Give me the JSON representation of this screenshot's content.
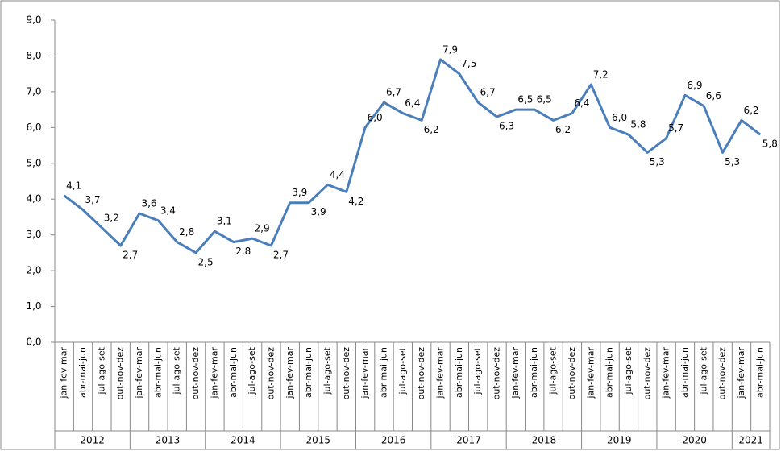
{
  "chart_data": {
    "type": "line",
    "groups": [
      {
        "name": "2012",
        "categories": [
          "jan-fev-mar",
          "abr-mai-jun",
          "jul-ago-set",
          "out-nov-dez"
        ]
      },
      {
        "name": "2013",
        "categories": [
          "jan-fev-mar",
          "abr-mai-jun",
          "jul-ago-set",
          "out-nov-dez"
        ]
      },
      {
        "name": "2014",
        "categories": [
          "jan-fev-mar",
          "abr-mai-jun",
          "jul-ago-set",
          "out-nov-dez"
        ]
      },
      {
        "name": "2015",
        "categories": [
          "jan-fev-mar",
          "abr-mai-jun",
          "jul-ago-set",
          "out-nov-dez"
        ]
      },
      {
        "name": "2016",
        "categories": [
          "jan-fev-mar",
          "abr-mai-jun",
          "jul-ago-set",
          "out-nov-dez"
        ]
      },
      {
        "name": "2017",
        "categories": [
          "jan-fev-mar",
          "abr-mai-jun",
          "jul-ago-set",
          "out-nov-dez"
        ]
      },
      {
        "name": "2018",
        "categories": [
          "jan-fev-mar",
          "abr-mai-jun",
          "jul-ago-set",
          "out-nov-dez"
        ]
      },
      {
        "name": "2019",
        "categories": [
          "jan-fev-mar",
          "abr-mai-jun",
          "jul-ago-set",
          "out-nov-dez"
        ]
      },
      {
        "name": "2020",
        "categories": [
          "jan-fev-mar",
          "abr-mai-jun",
          "jul-ago-set",
          "out-nov-dez"
        ]
      },
      {
        "name": "2021",
        "categories": [
          "jan-fev-mar",
          "abr-mai-jun"
        ]
      }
    ],
    "color": "#4a7ebb",
    "values": [
      4.1,
      3.7,
      3.2,
      2.7,
      3.6,
      3.4,
      2.8,
      2.5,
      3.1,
      2.8,
      2.9,
      2.7,
      3.9,
      3.9,
      4.4,
      4.2,
      6.0,
      6.7,
      6.4,
      6.2,
      7.9,
      7.5,
      6.7,
      6.3,
      6.5,
      6.5,
      6.2,
      6.4,
      7.2,
      6.0,
      5.8,
      5.3,
      5.7,
      6.9,
      6.6,
      5.3,
      6.2,
      5.8
    ],
    "value_labels": [
      "4,1",
      "3,7",
      "3,2",
      "2,7",
      "3,6",
      "3,4",
      "2,8",
      "2,5",
      "3,1",
      "2,8",
      "2,9",
      "2,7",
      "3,9",
      "3,9",
      "4,4",
      "4,2",
      "6,0",
      "6,7",
      "6,4",
      "6,2",
      "7,9",
      "7,5",
      "6,7",
      "6,3",
      "6,5",
      "6,5",
      "6,2",
      "6,4",
      "7,2",
      "6,0",
      "5,8",
      "5,3",
      "5,7",
      "6,9",
      "6,6",
      "5,3",
      "6,2",
      "5,8"
    ],
    "ylim": [
      0,
      9
    ],
    "yticks": [
      {
        "value": 0,
        "label": "0,0"
      },
      {
        "value": 1,
        "label": "1,0"
      },
      {
        "value": 2,
        "label": "2,0"
      },
      {
        "value": 3,
        "label": "3,0"
      },
      {
        "value": 4,
        "label": "4,0"
      },
      {
        "value": 5,
        "label": "5,0"
      },
      {
        "value": 6,
        "label": "6,0"
      },
      {
        "value": 7,
        "label": "7,0"
      },
      {
        "value": 8,
        "label": "8,0"
      },
      {
        "value": 9,
        "label": "9,0"
      }
    ]
  }
}
